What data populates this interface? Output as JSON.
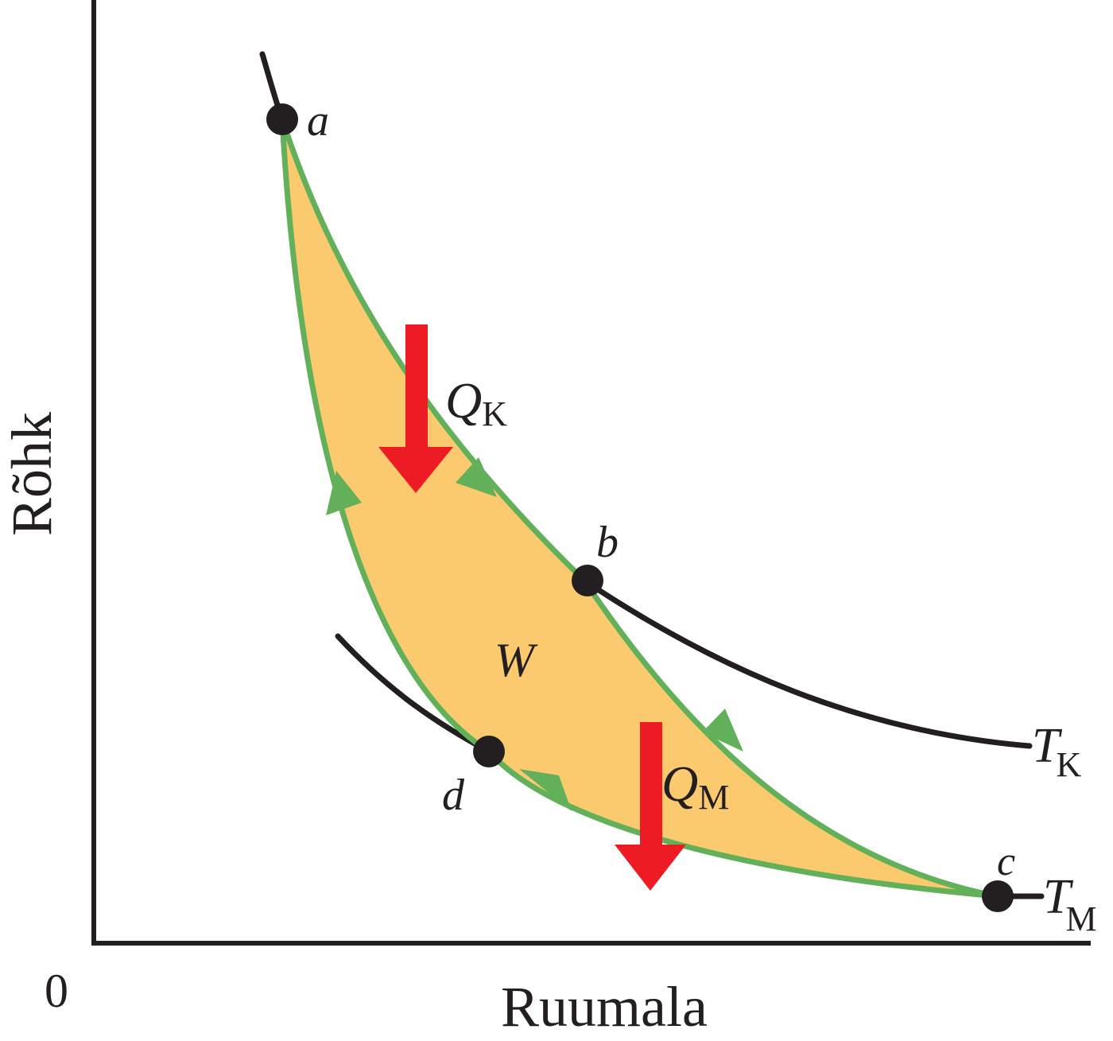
{
  "axes": {
    "y_label": "Rõhk",
    "x_label": "Ruumala",
    "origin_label": "0"
  },
  "points": [
    {
      "id": "a",
      "label": "a"
    },
    {
      "id": "b",
      "label": "b"
    },
    {
      "id": "c",
      "label": "c"
    },
    {
      "id": "d",
      "label": "d"
    }
  ],
  "isotherms": {
    "hot": {
      "symbol": "T",
      "subscript": "K"
    },
    "cold": {
      "symbol": "T",
      "subscript": "M"
    }
  },
  "heat": {
    "hot": {
      "symbol": "Q",
      "subscript": "K"
    },
    "cold": {
      "symbol": "Q",
      "subscript": "M"
    }
  },
  "work_label": "W",
  "colors": {
    "axis": "#231f20",
    "isotherm": "#231f20",
    "cycle_stroke": "#62b05a",
    "cycle_fill": "#fbc96e",
    "heat_arrow": "#ed1c24",
    "point": "#231f20"
  }
}
